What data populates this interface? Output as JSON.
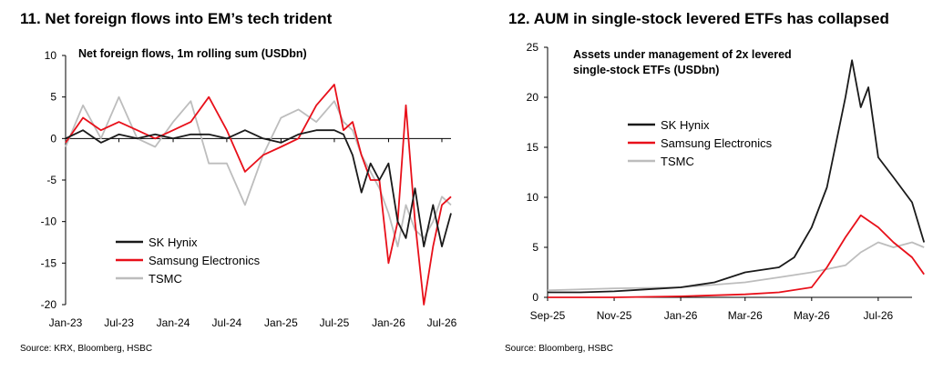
{
  "charts": {
    "left": {
      "heading": "11. Net foreign flows into EM’s tech trident",
      "source": "Source: KRX, Bloomberg, HSBC"
    },
    "right": {
      "heading": "12. AUM in single-stock levered ETFs has collapsed",
      "source": "Source: Bloomberg, HSBC"
    }
  },
  "colors": {
    "sk_hynix": "#1a1a1a",
    "samsung": "#e8101a",
    "tsmc": "#bdbdbd",
    "axis": "#000000"
  },
  "chart_data": [
    {
      "type": "line",
      "title": "Net foreign flows, 1m rolling sum (USDbn)",
      "xlabel": "",
      "ylabel": "",
      "x_ticks": [
        "Jan-23",
        "Jul-23",
        "Jan-24",
        "Jul-24",
        "Jan-25",
        "Jul-25",
        "Jan-26",
        "Jul-26"
      ],
      "y_ticks": [
        10,
        5,
        0,
        -5,
        -10,
        -15,
        -20
      ],
      "ylim": [
        -20,
        10
      ],
      "xlim": [
        "2023-01",
        "2026-08"
      ],
      "grid": false,
      "legend_position": "bottom-left",
      "series": [
        {
          "name": "SK Hynix",
          "color": "#1a1a1a",
          "x": [
            "2023-01",
            "2023-03",
            "2023-05",
            "2023-07",
            "2023-09",
            "2023-11",
            "2024-01",
            "2024-03",
            "2024-05",
            "2024-07",
            "2024-09",
            "2024-11",
            "2025-01",
            "2025-03",
            "2025-05",
            "2025-07",
            "2025-08",
            "2025-09",
            "2025-10",
            "2025-11",
            "2025-12",
            "2026-01",
            "2026-02",
            "2026-03",
            "2026-04",
            "2026-05",
            "2026-06",
            "2026-07",
            "2026-08"
          ],
          "values": [
            0,
            1,
            -0.5,
            0.5,
            0,
            0.5,
            0,
            0.5,
            0.5,
            0,
            1,
            0,
            -0.5,
            0.5,
            1,
            1,
            0.5,
            -2,
            -6.5,
            -3,
            -5,
            -3,
            -10,
            -12,
            -6,
            -13,
            -8,
            -13,
            -9
          ]
        },
        {
          "name": "Samsung Electronics",
          "color": "#e8101a",
          "x": [
            "2023-01",
            "2023-03",
            "2023-05",
            "2023-07",
            "2023-09",
            "2023-11",
            "2024-01",
            "2024-03",
            "2024-05",
            "2024-07",
            "2024-09",
            "2024-11",
            "2025-01",
            "2025-03",
            "2025-05",
            "2025-07",
            "2025-08",
            "2025-09",
            "2025-10",
            "2025-11",
            "2025-12",
            "2026-01",
            "2026-02",
            "2026-03",
            "2026-04",
            "2026-05",
            "2026-06",
            "2026-07",
            "2026-08"
          ],
          "values": [
            -0.5,
            2.5,
            1,
            2,
            1,
            0,
            1,
            2,
            5,
            1,
            -4,
            -2,
            -1,
            0,
            4,
            6.5,
            1,
            2,
            -2,
            -5,
            -5,
            -15,
            -10,
            4,
            -10,
            -20,
            -13,
            -8,
            -7
          ]
        },
        {
          "name": "TSMC",
          "color": "#bdbdbd",
          "x": [
            "2023-01",
            "2023-03",
            "2023-05",
            "2023-07",
            "2023-09",
            "2023-11",
            "2024-01",
            "2024-03",
            "2024-05",
            "2024-07",
            "2024-09",
            "2024-11",
            "2025-01",
            "2025-03",
            "2025-05",
            "2025-07",
            "2025-08",
            "2025-09",
            "2025-10",
            "2025-11",
            "2025-12",
            "2026-01",
            "2026-02",
            "2026-03",
            "2026-04",
            "2026-05",
            "2026-06",
            "2026-07",
            "2026-08"
          ],
          "values": [
            -1,
            4,
            0,
            5,
            0,
            -1,
            2,
            4.5,
            -3,
            -3,
            -8,
            -2,
            2.5,
            3.5,
            2,
            4.5,
            2,
            1,
            -2,
            -4,
            -6,
            -9,
            -13,
            -8,
            -11,
            -12,
            -10,
            -7,
            -8
          ]
        }
      ]
    },
    {
      "type": "line",
      "title": "Assets under management  of 2x levered single-stock ETFs (USDbn)",
      "xlabel": "",
      "ylabel": "",
      "x_ticks": [
        "Sep-25",
        "Nov-25",
        "Jan-26",
        "Mar-26",
        "May-26",
        "Jul-26"
      ],
      "y_ticks": [
        25,
        20,
        15,
        10,
        5,
        0
      ],
      "ylim": [
        0,
        25
      ],
      "xlim": [
        "2025-09",
        "2026-08"
      ],
      "grid": false,
      "legend_position": "middle-left",
      "series": [
        {
          "name": "SK Hynix",
          "color": "#1a1a1a",
          "x": [
            "2025-09-01",
            "2025-10-01",
            "2025-11-01",
            "2025-12-01",
            "2026-01-01",
            "2026-02-01",
            "2026-03-01",
            "2026-04-01",
            "2026-04-15",
            "2026-05-01",
            "2026-05-15",
            "2026-06-01",
            "2026-06-07",
            "2026-06-15",
            "2026-06-22",
            "2026-07-01",
            "2026-07-15",
            "2026-08-01",
            "2026-08-12"
          ],
          "values": [
            0.5,
            0.5,
            0.6,
            0.8,
            1.0,
            1.5,
            2.5,
            3.0,
            4.0,
            7.0,
            11.0,
            20.0,
            23.7,
            19.0,
            21.0,
            14.0,
            12.0,
            9.5,
            5.5
          ]
        },
        {
          "name": "Samsung Electronics",
          "color": "#e8101a",
          "x": [
            "2025-09-01",
            "2025-11-01",
            "2026-01-01",
            "2026-03-01",
            "2026-04-01",
            "2026-05-01",
            "2026-05-15",
            "2026-06-01",
            "2026-06-15",
            "2026-07-01",
            "2026-07-15",
            "2026-08-01",
            "2026-08-12"
          ],
          "values": [
            0,
            0,
            0.1,
            0.3,
            0.5,
            1.0,
            3.0,
            6.0,
            8.2,
            7.0,
            5.5,
            4.0,
            2.3
          ]
        },
        {
          "name": "TSMC",
          "color": "#bdbdbd",
          "x": [
            "2025-09-01",
            "2025-11-01",
            "2026-01-01",
            "2026-03-01",
            "2026-04-01",
            "2026-05-01",
            "2026-06-01",
            "2026-06-15",
            "2026-07-01",
            "2026-07-15",
            "2026-08-01",
            "2026-08-12"
          ],
          "values": [
            0.7,
            0.9,
            1.0,
            1.5,
            2.0,
            2.5,
            3.2,
            4.5,
            5.5,
            5.0,
            5.5,
            5.0
          ]
        }
      ]
    }
  ]
}
